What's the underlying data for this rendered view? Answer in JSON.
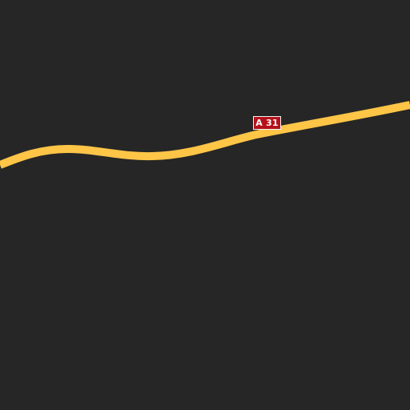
{
  "map": {
    "background_color": "#262626",
    "road": {
      "class": "motorway",
      "color": "#ffc547",
      "ref": "A 31"
    },
    "shield": {
      "label": "A 31",
      "fill_color": "#b5121b",
      "border_color": "#f2f2f2",
      "text_color": "#ffffff"
    }
  }
}
